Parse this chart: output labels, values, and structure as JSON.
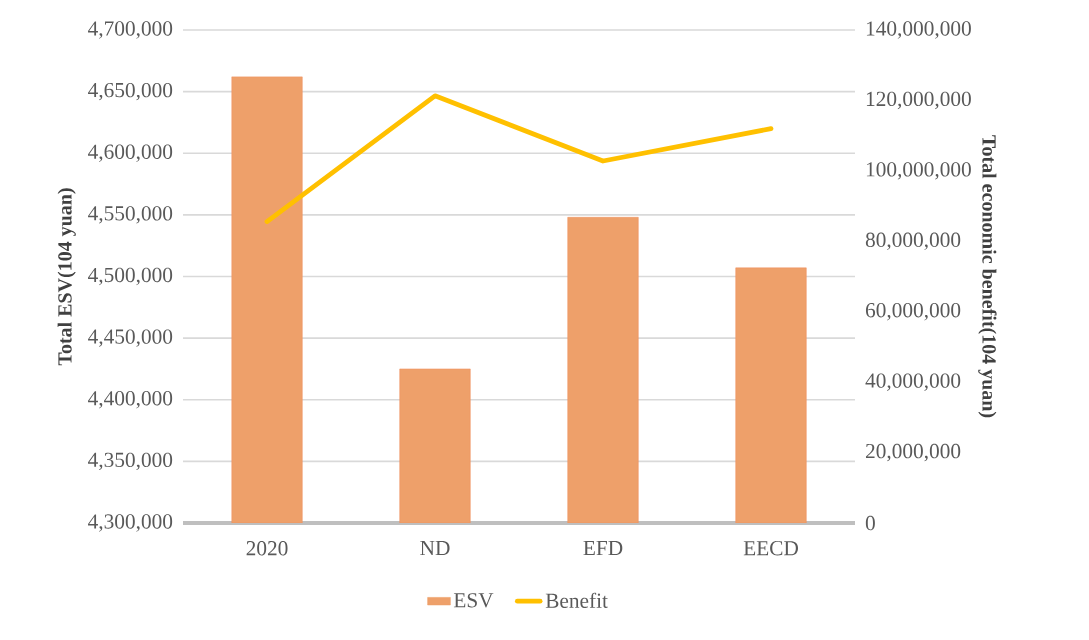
{
  "chart_data": {
    "type": "bar",
    "categories": [
      "2020",
      "ND",
      "EFD",
      "EECD"
    ],
    "ylabel": "Total ESV(104 yuan)",
    "y2label": "Total economic benefit(104 yuan)",
    "ylim": [
      4300000,
      4700000
    ],
    "yticks": [
      {
        "value": 4300000,
        "label": "4,300,000"
      },
      {
        "value": 4350000,
        "label": "4,350,000"
      },
      {
        "value": 4400000,
        "label": "4,400,000"
      },
      {
        "value": 4450000,
        "label": "4,450,000"
      },
      {
        "value": 4500000,
        "label": "4,500,000"
      },
      {
        "value": 4550000,
        "label": "4,550,000"
      },
      {
        "value": 4600000,
        "label": "4,600,000"
      },
      {
        "value": 4650000,
        "label": "4,650,000"
      },
      {
        "value": 4700000,
        "label": "4,700,000"
      }
    ],
    "y2lim": [
      0,
      140000000
    ],
    "y2ticks": [
      0,
      {
        "value": 20000000,
        "label": "20,000,000"
      },
      {
        "value": 40000000,
        "label": "40,000,000"
      },
      {
        "value": 60000000,
        "label": "60,000,000"
      },
      {
        "value": 80000000,
        "label": "80,000,000"
      },
      {
        "value": 100000000,
        "label": "100,000,000"
      },
      {
        "value": 120000000,
        "label": "120,000,000"
      },
      {
        "value": 140000000,
        "label": "140,000,000"
      }
    ],
    "grid": "y",
    "legend": "bottom",
    "series": [
      {
        "name": "ESV",
        "color": "#eea06a",
        "values": [
          4662000,
          4425000,
          4548000,
          4507000
        ]
      },
      {
        "name": "Benefit",
        "type": "line",
        "axis": "y2",
        "color": "#ffc000",
        "values": [
          85600000,
          121300000,
          102800000,
          112000000
        ]
      }
    ]
  }
}
